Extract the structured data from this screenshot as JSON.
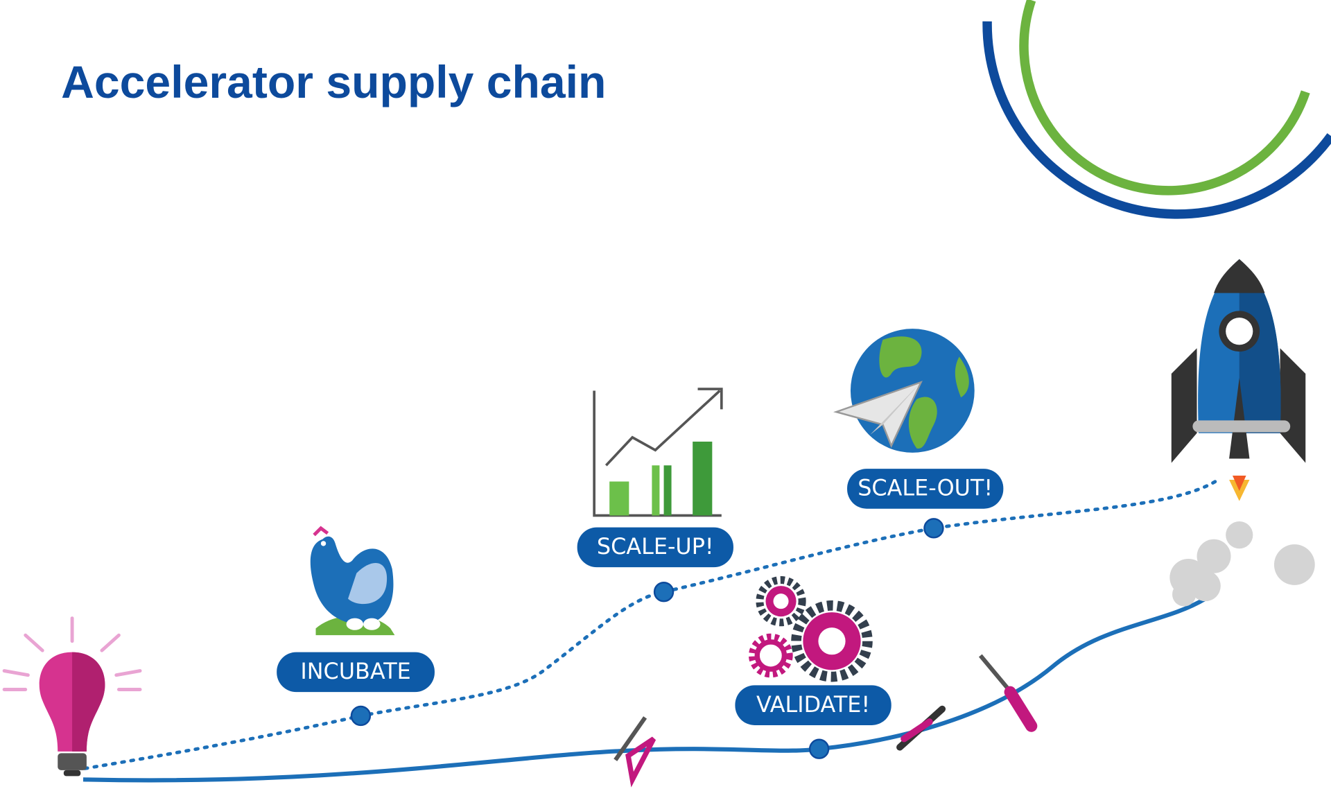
{
  "header": {
    "title": "Accelerator supply chain"
  },
  "stages": [
    {
      "label": "INCUBATE"
    },
    {
      "label": "SCALE-UP!"
    },
    {
      "label": "SCALE-OUT!"
    },
    {
      "label": "VALIDATE!"
    }
  ]
}
